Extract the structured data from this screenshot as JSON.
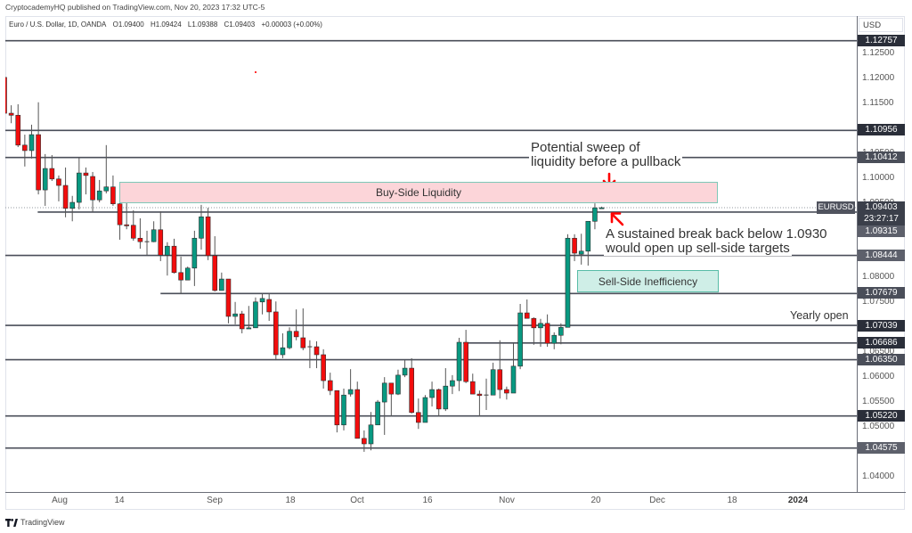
{
  "header": {
    "publisher_line": "CryptocademyHQ published on TradingView.com, Nov 20, 2023 17:32 UTC-5"
  },
  "legend": {
    "symbol_line": "Euro / U.S. Dollar, 1D, OANDA",
    "open": "O1.09400",
    "high": "H1.09424",
    "low": "L1.09388",
    "close": "C1.09403",
    "change": "+0.00003 (+0.00%)"
  },
  "price_axis": {
    "currency": "USD",
    "ticks": [
      "1.12500",
      "1.12000",
      "1.11500",
      "1.10500",
      "1.10000",
      "1.09500",
      "1.08000",
      "1.07500",
      "1.06500",
      "1.06000",
      "1.05500",
      "1.05000",
      "1.04000"
    ],
    "level_tags": [
      "1.12757",
      "1.10956",
      "1.10412",
      "1.09315",
      "1.08444",
      "1.07679",
      "1.07039",
      "1.06686",
      "1.06350",
      "1.05220",
      "1.04575"
    ],
    "last_price": "1.09403",
    "countdown": "23:27:17",
    "symbol_tag": "EURUSD"
  },
  "time_axis": {
    "labels": [
      "Aug",
      "14",
      "Sep",
      "18",
      "Oct",
      "16",
      "Nov",
      "20",
      "Dec",
      "18",
      "2024"
    ]
  },
  "annotations": {
    "buy_side_box": "Buy-Side Liquidity",
    "sell_side_box": "Sell-Side Inefficiency",
    "sweep_note": [
      "Potential sweep of",
      "liquidity before a pullback"
    ],
    "break_note": [
      "A sustained break back below 1.0930",
      "would open up sell-side targets"
    ],
    "yearly_open": "Yearly open"
  },
  "footer": {
    "brand": "TradingView"
  },
  "colors": {
    "candle_up": "#089981",
    "candle_down": "#f20d0d",
    "level_line": "#4a4e59",
    "buy_zone_fill": "#fcd5d9",
    "sell_zone_fill": "#cfeee7",
    "zone_border": "#6cc2b0",
    "arrow": "#ff0000"
  },
  "chart_data": {
    "type": "candlestick",
    "title": "Euro / U.S. Dollar, 1D, OANDA",
    "symbol": "EURUSD",
    "timeframe": "1D",
    "xlabel": "",
    "ylabel": "USD",
    "ylim": [
      1.03693,
      1.13252
    ],
    "grid": false,
    "legend_position": "top-left",
    "x_tick_labels": [
      "Aug",
      "14",
      "Sep",
      "18",
      "Oct",
      "16",
      "Nov",
      "20",
      "Dec",
      "18",
      "2024"
    ],
    "y_tick_labels": [
      "1.12500",
      "1.12000",
      "1.11500",
      "1.10500",
      "1.10000",
      "1.09500",
      "1.08000",
      "1.07500",
      "1.06500",
      "1.06000",
      "1.05500",
      "1.05000",
      "1.04000"
    ],
    "last": {
      "open": 1.094,
      "high": 1.09424,
      "low": 1.09388,
      "close": 1.09403,
      "change": 3e-05,
      "change_pct": 0.0
    },
    "x": [
      "2023-07-20",
      "2023-07-21",
      "2023-07-24",
      "2023-07-25",
      "2023-07-26",
      "2023-07-27",
      "2023-07-28",
      "2023-07-31",
      "2023-08-01",
      "2023-08-02",
      "2023-08-03",
      "2023-08-04",
      "2023-08-07",
      "2023-08-08",
      "2023-08-09",
      "2023-08-10",
      "2023-08-11",
      "2023-08-14",
      "2023-08-15",
      "2023-08-16",
      "2023-08-17",
      "2023-08-18",
      "2023-08-21",
      "2023-08-22",
      "2023-08-23",
      "2023-08-24",
      "2023-08-25",
      "2023-08-28",
      "2023-08-29",
      "2023-08-30",
      "2023-08-31",
      "2023-09-01",
      "2023-09-04",
      "2023-09-05",
      "2023-09-06",
      "2023-09-07",
      "2023-09-08",
      "2023-09-11",
      "2023-09-12",
      "2023-09-13",
      "2023-09-14",
      "2023-09-15",
      "2023-09-18",
      "2023-09-19",
      "2023-09-20",
      "2023-09-21",
      "2023-09-22",
      "2023-09-25",
      "2023-09-26",
      "2023-09-27",
      "2023-09-28",
      "2023-09-29",
      "2023-10-02",
      "2023-10-03",
      "2023-10-04",
      "2023-10-05",
      "2023-10-06",
      "2023-10-09",
      "2023-10-10",
      "2023-10-11",
      "2023-10-12",
      "2023-10-13",
      "2023-10-16",
      "2023-10-17",
      "2023-10-18",
      "2023-10-19",
      "2023-10-20",
      "2023-10-23",
      "2023-10-24",
      "2023-10-25",
      "2023-10-26",
      "2023-10-27",
      "2023-10-30",
      "2023-10-31",
      "2023-11-01",
      "2023-11-02",
      "2023-11-03",
      "2023-11-06",
      "2023-11-07",
      "2023-11-08",
      "2023-11-09",
      "2023-11-10",
      "2023-11-13",
      "2023-11-14",
      "2023-11-15",
      "2023-11-16",
      "2023-11-17",
      "2023-11-20",
      "2023-11-21"
    ],
    "ohlc_columns": [
      "open",
      "high",
      "low",
      "close"
    ],
    "ohlc": [
      [
        1.1202,
        1.1202,
        1.113,
        1.113
      ],
      [
        1.113,
        1.1146,
        1.111,
        1.1126
      ],
      [
        1.1126,
        1.1148,
        1.1062,
        1.1066
      ],
      [
        1.1066,
        1.1087,
        1.1023,
        1.1055
      ],
      [
        1.1055,
        1.1107,
        1.1039,
        1.1087
      ],
      [
        1.1087,
        1.1152,
        1.0967,
        1.0976
      ],
      [
        1.0976,
        1.1048,
        1.0944,
        1.1019
      ],
      [
        1.1019,
        1.1046,
        1.0994,
        1.0998
      ],
      [
        1.0998,
        1.1005,
        1.0953,
        1.0985
      ],
      [
        1.0985,
        1.1021,
        1.0921,
        1.0939
      ],
      [
        1.0939,
        1.0964,
        1.0913,
        1.0951
      ],
      [
        1.0951,
        1.1041,
        1.0937,
        1.101
      ],
      [
        1.101,
        1.1021,
        1.0967,
        1.1005
      ],
      [
        1.1003,
        1.1012,
        1.0931,
        1.0956
      ],
      [
        1.0956,
        1.0996,
        1.0951,
        1.0974
      ],
      [
        1.0974,
        1.1066,
        1.0969,
        1.0982
      ],
      [
        1.0982,
        1.1005,
        1.0944,
        1.0948
      ],
      [
        1.0948,
        1.0953,
        1.0876,
        1.0906
      ],
      [
        1.0906,
        1.0953,
        1.0897,
        1.0905
      ],
      [
        1.0905,
        1.0935,
        1.0874,
        1.0879
      ],
      [
        1.0879,
        1.0919,
        1.0858,
        1.0872
      ],
      [
        1.0872,
        1.0894,
        1.0845,
        1.0872
      ],
      [
        1.0872,
        1.0913,
        1.0871,
        1.0896
      ],
      [
        1.0896,
        1.0933,
        1.0833,
        1.0845
      ],
      [
        1.0845,
        1.0871,
        1.0804,
        1.0863
      ],
      [
        1.0863,
        1.0878,
        1.0808,
        1.081
      ],
      [
        1.081,
        1.0842,
        1.0767,
        1.0795
      ],
      [
        1.0795,
        1.0822,
        1.0795,
        1.0819
      ],
      [
        1.0819,
        1.0894,
        1.0783,
        1.0879
      ],
      [
        1.0879,
        1.0946,
        1.0856,
        1.0922
      ],
      [
        1.0922,
        1.094,
        1.0835,
        1.0844
      ],
      [
        1.0844,
        1.0883,
        1.0772,
        1.0774
      ],
      [
        1.0774,
        1.081,
        1.0774,
        1.0797
      ],
      [
        1.0797,
        1.0797,
        1.0708,
        1.0722
      ],
      [
        1.0722,
        1.0751,
        1.0706,
        1.0727
      ],
      [
        1.0727,
        1.0733,
        1.0688,
        1.0697
      ],
      [
        1.0697,
        1.0743,
        1.0697,
        1.0699
      ],
      [
        1.0699,
        1.076,
        1.0699,
        1.0751
      ],
      [
        1.0751,
        1.0768,
        1.0726,
        1.0758
      ],
      [
        1.0756,
        1.0768,
        1.0713,
        1.0731
      ],
      [
        1.0731,
        1.0752,
        1.0634,
        1.0645
      ],
      [
        1.0645,
        1.0688,
        1.0638,
        1.0659
      ],
      [
        1.0659,
        1.07,
        1.0656,
        1.0692
      ],
      [
        1.0692,
        1.0736,
        1.0674,
        1.0681
      ],
      [
        1.0679,
        1.0738,
        1.0654,
        1.0659
      ],
      [
        1.0661,
        1.0674,
        1.0618,
        1.0661
      ],
      [
        1.0661,
        1.0672,
        1.0618,
        1.0645
      ],
      [
        1.0645,
        1.0656,
        1.0577,
        1.0593
      ],
      [
        1.0593,
        1.0609,
        1.0564,
        1.0573
      ],
      [
        1.0573,
        1.0573,
        1.0489,
        1.0504
      ],
      [
        1.0504,
        1.0577,
        1.0493,
        1.0564
      ],
      [
        1.0566,
        1.0616,
        1.0561,
        1.0575
      ],
      [
        1.0575,
        1.0591,
        1.0477,
        1.0477
      ],
      [
        1.0477,
        1.0493,
        1.045,
        1.0466
      ],
      [
        1.0466,
        1.053,
        1.0453,
        1.0504
      ],
      [
        1.0504,
        1.0554,
        1.0504,
        1.055
      ],
      [
        1.055,
        1.06,
        1.0484,
        1.0588
      ],
      [
        1.0588,
        1.0588,
        1.0521,
        1.0566
      ],
      [
        1.0566,
        1.0615,
        1.0564,
        1.0604
      ],
      [
        1.0604,
        1.0634,
        1.06,
        1.0618
      ],
      [
        1.0618,
        1.0638,
        1.0527,
        1.0529
      ],
      [
        1.0529,
        1.0557,
        1.0496,
        1.0509
      ],
      [
        1.0509,
        1.0564,
        1.0509,
        1.0559
      ],
      [
        1.0559,
        1.0591,
        1.0541,
        1.0575
      ],
      [
        1.0575,
        1.0577,
        1.0521,
        1.0536
      ],
      [
        1.0536,
        1.0618,
        1.0532,
        1.0582
      ],
      [
        1.0582,
        1.0604,
        1.0566,
        1.0593
      ],
      [
        1.0593,
        1.0679,
        1.0572,
        1.067
      ],
      [
        1.067,
        1.0695,
        1.0588,
        1.0591
      ],
      [
        1.0591,
        1.0607,
        1.0566,
        1.0566
      ],
      [
        1.0566,
        1.0573,
        1.0521,
        1.0563
      ],
      [
        1.0564,
        1.0597,
        1.0534,
        1.0564
      ],
      [
        1.0564,
        1.0629,
        1.0564,
        1.0615
      ],
      [
        1.0615,
        1.0674,
        1.0557,
        1.0575
      ],
      [
        1.0575,
        1.0581,
        1.0555,
        1.0568
      ],
      [
        1.0568,
        1.0668,
        1.0568,
        1.0622
      ],
      [
        1.0622,
        1.0747,
        1.0616,
        1.0729
      ],
      [
        1.0729,
        1.0756,
        1.0718,
        1.0718
      ],
      [
        1.0718,
        1.072,
        1.0665,
        1.0699
      ],
      [
        1.0699,
        1.0717,
        1.0661,
        1.0708
      ],
      [
        1.0708,
        1.0726,
        1.0661,
        1.0668
      ],
      [
        1.0668,
        1.069,
        1.0656,
        1.0684
      ],
      [
        1.0684,
        1.0708,
        1.0666,
        1.07
      ],
      [
        1.07,
        1.0887,
        1.07,
        1.0879
      ],
      [
        1.0879,
        1.0887,
        1.0833,
        1.0849
      ],
      [
        1.0847,
        1.0888,
        1.0826,
        1.0853
      ],
      [
        1.0853,
        1.0913,
        1.0824,
        1.0913
      ],
      [
        1.0913,
        1.0949,
        1.0897,
        1.094
      ],
      [
        1.094,
        1.09424,
        1.09388,
        1.09403
      ]
    ],
    "levels": [
      {
        "price": 1.12757,
        "start_index": null
      },
      {
        "price": 1.10956,
        "start_index": null
      },
      {
        "price": 1.10412,
        "start_index": null
      },
      {
        "price": 1.09315,
        "start_index": 4.9
      },
      {
        "price": 1.08444,
        "start_index": null
      },
      {
        "price": 1.07679,
        "start_index": 23.0
      },
      {
        "price": 1.07039,
        "start_index": null,
        "label": "Yearly open"
      },
      {
        "price": 1.06686,
        "start_index": 67.6
      },
      {
        "price": 1.0635,
        "start_index": null
      },
      {
        "price": 1.0522,
        "start_index": null
      },
      {
        "price": 1.04575,
        "start_index": null
      }
    ],
    "zones": [
      {
        "label": "Buy-Side Liquidity",
        "top": 1.0992,
        "bottom": 1.0951
      },
      {
        "label": "Sell-Side Inefficiency",
        "top": 1.0815,
        "bottom": 1.0772
      }
    ],
    "notes": [
      "Potential sweep of liquidity before a pullback",
      "A sustained break back below 1.0930 would open up sell-side targets"
    ]
  }
}
